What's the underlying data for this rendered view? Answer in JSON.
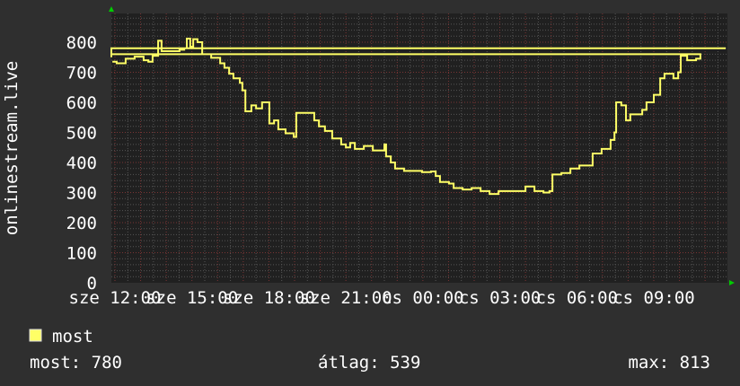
{
  "chart_data": {
    "type": "line",
    "ylabel": "onlinestream.live",
    "ylim": [
      0,
      890
    ],
    "y_ticks": [
      "0",
      "100",
      "200",
      "300",
      "400",
      "500",
      "600",
      "700",
      "800"
    ],
    "x_ticks": [
      "sze 12:00",
      "sze 15:00",
      "sze 18:00",
      "sze 21:00",
      "cs 00:00",
      "cs 03:00",
      "cs 06:00",
      "cs 09:00"
    ],
    "grid": true,
    "colors": {
      "background": "#2f2f2f",
      "plot": "#202020",
      "line": "#ffff66",
      "major_grid": "#7a3434",
      "minor_grid": "#555555",
      "arrow": "#00cc00"
    },
    "series": [
      {
        "name": "most",
        "points": [
          [
            "11:54",
            735
          ],
          [
            "12:04",
            730
          ],
          [
            "12:25",
            745
          ],
          [
            "12:46",
            752
          ],
          [
            "13:07",
            740
          ],
          [
            "13:18",
            735
          ],
          [
            "13:28",
            755
          ],
          [
            "13:41",
            805
          ],
          [
            "13:49",
            770
          ],
          [
            "14:10",
            770
          ],
          [
            "14:31",
            775
          ],
          [
            "14:42",
            780
          ],
          [
            "14:48",
            812
          ],
          [
            "14:56",
            785
          ],
          [
            "15:03",
            810
          ],
          [
            "15:13",
            800
          ],
          [
            "15:24",
            760
          ],
          [
            "15:45",
            748
          ],
          [
            "16:06",
            730
          ],
          [
            "16:16",
            715
          ],
          [
            "16:27",
            695
          ],
          [
            "16:37",
            680
          ],
          [
            "16:52",
            665
          ],
          [
            "16:58",
            640
          ],
          [
            "17:05",
            570
          ],
          [
            "17:19",
            590
          ],
          [
            "17:30",
            580
          ],
          [
            "17:44",
            600
          ],
          [
            "17:57",
            600
          ],
          [
            "18:01",
            530
          ],
          [
            "18:12",
            540
          ],
          [
            "18:22",
            510
          ],
          [
            "18:39",
            497
          ],
          [
            "18:58",
            485
          ],
          [
            "19:04",
            565
          ],
          [
            "19:36",
            565
          ],
          [
            "19:46",
            540
          ],
          [
            "19:57",
            520
          ],
          [
            "20:11",
            505
          ],
          [
            "20:28",
            480
          ],
          [
            "20:49",
            460
          ],
          [
            "21:00",
            450
          ],
          [
            "21:10",
            465
          ],
          [
            "21:21",
            445
          ],
          [
            "21:42",
            455
          ],
          [
            "22:03",
            440
          ],
          [
            "22:24",
            440
          ],
          [
            "22:30",
            460
          ],
          [
            "22:34",
            420
          ],
          [
            "22:45",
            400
          ],
          [
            "22:55",
            380
          ],
          [
            "23:16",
            372
          ],
          [
            "23:58",
            368
          ],
          [
            "00:19",
            370
          ],
          [
            "00:30",
            355
          ],
          [
            "00:40",
            335
          ],
          [
            "01:01",
            330
          ],
          [
            "01:12",
            315
          ],
          [
            "01:33",
            310
          ],
          [
            "01:54",
            315
          ],
          [
            "02:15",
            305
          ],
          [
            "02:36",
            295
          ],
          [
            "02:57",
            305
          ],
          [
            "03:18",
            305
          ],
          [
            "03:39",
            305
          ],
          [
            "04:00",
            320
          ],
          [
            "04:21",
            305
          ],
          [
            "04:42",
            300
          ],
          [
            "04:56",
            305
          ],
          [
            "05:03",
            360
          ],
          [
            "05:24",
            365
          ],
          [
            "05:45",
            380
          ],
          [
            "06:06",
            390
          ],
          [
            "06:27",
            390
          ],
          [
            "06:37",
            430
          ],
          [
            "06:58",
            445
          ],
          [
            "07:19",
            475
          ],
          [
            "07:28",
            500
          ],
          [
            "07:32",
            600
          ],
          [
            "07:44",
            590
          ],
          [
            "07:55",
            540
          ],
          [
            "08:05",
            560
          ],
          [
            "08:33",
            575
          ],
          [
            "08:43",
            600
          ],
          [
            "09:00",
            625
          ],
          [
            "09:15",
            680
          ],
          [
            "09:25",
            695
          ],
          [
            "09:46",
            680
          ],
          [
            "09:57",
            700
          ],
          [
            "10:03",
            755
          ],
          [
            "10:18",
            740
          ],
          [
            "10:39",
            745
          ],
          [
            "10:49",
            760
          ],
          [
            "11:10",
            750
          ],
          [
            "11:31",
            765
          ],
          [
            "11:48",
            780
          ]
        ]
      }
    ]
  },
  "legend": {
    "label": "most",
    "color": "#ffff66"
  },
  "stats": {
    "current": "most: 780",
    "average": "átlag: 539",
    "max": "max: 813"
  }
}
